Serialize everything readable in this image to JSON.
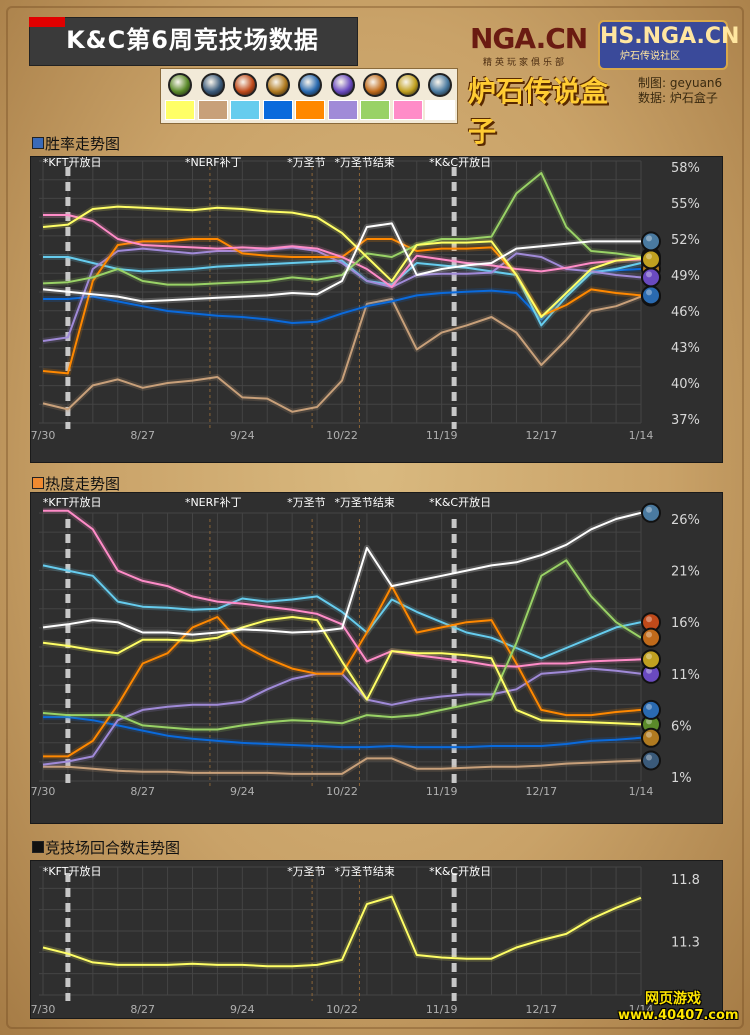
{
  "header": {
    "title": "K&C第6周竞技场数据",
    "nga_logo": "NGA.CN",
    "nga_sub": "精英玩家俱乐部",
    "hs_logo": "HS.NGA.CN",
    "hs_sub": "炉石传说社区",
    "box_logo": "炉石传说盒子",
    "credit_maker_label": "制图:",
    "credit_maker": "geyuan6",
    "credit_data_label": "数据:",
    "credit_data": "炉石盒子"
  },
  "legend": {
    "classes": [
      {
        "icon": "druid-icon",
        "color": "#ffff66",
        "icon_color": "#5a8a2a"
      },
      {
        "icon": "hunter-icon",
        "color": "#c8a07a",
        "icon_color": "#3a5a7a"
      },
      {
        "icon": "mage-icon",
        "color": "#66ccee",
        "icon_color": "#c04a1a"
      },
      {
        "icon": "paladin-icon",
        "color": "#0a6adc",
        "icon_color": "#b07a20"
      },
      {
        "icon": "priest-icon",
        "color": "#ff8800",
        "icon_color": "#2a6ab0"
      },
      {
        "icon": "rogue-icon",
        "color": "#a08ad8",
        "icon_color": "#6a4ac0"
      },
      {
        "icon": "shaman-icon",
        "color": "#99d266",
        "icon_color": "#c06a1a"
      },
      {
        "icon": "warlock-icon",
        "color": "#ff8cc8",
        "icon_color": "#c0a020"
      },
      {
        "icon": "warrior-icon",
        "color": "#ffffff",
        "icon_color": "#4a7aa0"
      }
    ]
  },
  "sections": {
    "winrate_title": "胜率走势图",
    "pop_title": "热度走势图",
    "turns_title": "竞技场回合数走势图"
  },
  "events": {
    "kft": "*KFT开放日",
    "nerf": "*NERF补丁",
    "halloween": "*万圣节",
    "halloween_end": "*万圣节结束",
    "kc": "*K&C开放日"
  },
  "footer": {
    "badge_top": "网页游戏",
    "badge_url": "www.40407.com"
  },
  "chart_data": [
    {
      "type": "line",
      "title": "胜率走势图",
      "x": [
        "7/30",
        "8/6",
        "8/13",
        "8/20",
        "8/27",
        "9/3",
        "9/10",
        "9/17",
        "9/24",
        "10/1",
        "10/8",
        "10/15",
        "10/22",
        "10/29",
        "11/5",
        "11/12",
        "11/19",
        "11/26",
        "12/3",
        "12/10",
        "12/17",
        "12/24",
        "12/31",
        "1/7",
        "1/14"
      ],
      "x_tick_labels": [
        "7/30",
        "8/27",
        "9/24",
        "10/22",
        "11/19",
        "12/17",
        "1/14"
      ],
      "yticks": [
        "58%",
        "55%",
        "52%",
        "49%",
        "46%",
        "43%",
        "40%",
        "37%"
      ],
      "ylim": [
        37,
        58
      ],
      "series": [
        {
          "color": "#ffff66",
          "values": [
            53,
            53.2,
            54.5,
            54.7,
            54.6,
            54.5,
            54.4,
            54.6,
            54.5,
            54.3,
            54.2,
            53.8,
            52.5,
            50.5,
            48.5,
            51.5,
            51.7,
            51.7,
            51.8,
            49,
            45.5,
            47.5,
            49.5,
            50.2,
            50.4
          ]
        },
        {
          "color": "#c8a07a",
          "values": [
            38.3,
            37.8,
            39.8,
            40.3,
            39.6,
            40,
            40.2,
            40.5,
            38.8,
            38.7,
            37.6,
            38,
            40.2,
            46.6,
            47,
            42.8,
            44.2,
            44.8,
            45.5,
            44.2,
            41.5,
            43.6,
            46,
            46.4,
            47.2
          ]
        },
        {
          "color": "#66ccee",
          "values": [
            50.5,
            50.5,
            50,
            49.5,
            49.3,
            49.4,
            49.5,
            49.7,
            49.8,
            49.9,
            50,
            50.1,
            50.2,
            48.5,
            48.2,
            50,
            49.8,
            49.6,
            49.3,
            49,
            44.8,
            47.2,
            49.2,
            49.5,
            50
          ]
        },
        {
          "color": "#0a6adc",
          "values": [
            47,
            47,
            47.2,
            46.8,
            46.4,
            46,
            45.8,
            45.6,
            45.5,
            45.3,
            45,
            45.1,
            45.8,
            46.4,
            46.8,
            47.3,
            47.5,
            47.6,
            47.7,
            47.5,
            45.3,
            47.5,
            49.3,
            49.4,
            49.5
          ]
        },
        {
          "color": "#ff8800",
          "values": [
            41,
            40.8,
            48.5,
            51.5,
            51.8,
            51.8,
            52,
            52,
            50.8,
            50.6,
            50.5,
            50.5,
            50.5,
            52,
            52,
            51,
            51.2,
            51.2,
            51.3,
            49,
            45.6,
            46.5,
            47.8,
            47.5,
            47.3
          ]
        },
        {
          "color": "#a08ad8",
          "values": [
            43.5,
            43.8,
            49.5,
            51,
            51.2,
            51,
            50.8,
            51,
            51,
            51.1,
            51.3,
            51,
            50,
            48.5,
            48,
            49,
            49.1,
            49.1,
            49.2,
            50.8,
            50.5,
            49.5,
            49.3,
            49,
            48.8
          ]
        },
        {
          "color": "#99d266",
          "values": [
            48.3,
            48.4,
            48.8,
            49.5,
            48.5,
            48.2,
            48.2,
            48.3,
            48.4,
            48.5,
            48.8,
            48.6,
            49,
            50.8,
            50.5,
            51.5,
            52,
            52,
            52.2,
            55.8,
            57.5,
            53,
            51,
            50.8,
            50.5
          ]
        },
        {
          "color": "#ff8cc8",
          "values": [
            54,
            54,
            53.5,
            52,
            51.5,
            51.4,
            51.3,
            51.2,
            51.3,
            51.2,
            51.4,
            51.2,
            50.5,
            49.5,
            48,
            50.6,
            50.3,
            50,
            49.8,
            49.5,
            49.3,
            49.6,
            50,
            50.2,
            50.3
          ]
        },
        {
          "color": "#ffffff",
          "values": [
            47.8,
            47.6,
            47.4,
            47.2,
            46.8,
            46.9,
            47,
            47.1,
            47.2,
            47.3,
            47.5,
            47.4,
            48.5,
            53,
            53.3,
            49,
            49.5,
            49.8,
            50,
            51.2,
            51.4,
            51.6,
            51.8,
            51.8,
            51.8
          ]
        }
      ]
    },
    {
      "type": "line",
      "title": "热度走势图",
      "x": [
        "7/30",
        "8/6",
        "8/13",
        "8/20",
        "8/27",
        "9/3",
        "9/10",
        "9/17",
        "9/24",
        "10/1",
        "10/8",
        "10/15",
        "10/22",
        "10/29",
        "11/5",
        "11/12",
        "11/19",
        "11/26",
        "12/3",
        "12/10",
        "12/17",
        "12/24",
        "12/31",
        "1/7",
        "1/14"
      ],
      "x_tick_labels": [
        "7/30",
        "8/27",
        "9/24",
        "10/22",
        "11/19",
        "12/17",
        "1/14"
      ],
      "yticks": [
        "26%",
        "21%",
        "16%",
        "11%",
        "6%",
        "1%"
      ],
      "ylim": [
        1,
        26
      ],
      "series": [
        {
          "color": "#ffff66",
          "values": [
            14,
            13.7,
            13.3,
            13,
            14.3,
            14.3,
            14.2,
            14.5,
            15.5,
            16.2,
            16.5,
            16.2,
            12.2,
            8.5,
            13.2,
            13,
            13,
            12.8,
            12.5,
            7.5,
            6.5,
            6.4,
            6.3,
            6.2,
            6.1
          ]
        },
        {
          "color": "#c8a07a",
          "values": [
            2,
            2,
            1.8,
            1.6,
            1.5,
            1.5,
            1.4,
            1.4,
            1.4,
            1.4,
            1.3,
            1.3,
            1.3,
            2.8,
            2.8,
            1.8,
            1.8,
            1.9,
            2,
            2,
            2.1,
            2.3,
            2.4,
            2.5,
            2.6
          ]
        },
        {
          "color": "#66ccee",
          "values": [
            21.5,
            21,
            20.5,
            18,
            17.5,
            17.4,
            17.2,
            17.3,
            18.3,
            18,
            18.2,
            18.5,
            17,
            15,
            18.2,
            17,
            16,
            15,
            14.5,
            13.5,
            12.5,
            13.5,
            14.5,
            15.5,
            16
          ]
        },
        {
          "color": "#0a6adc",
          "values": [
            6.8,
            6.8,
            6.5,
            6,
            5.5,
            5,
            4.7,
            4.5,
            4.3,
            4.2,
            4.1,
            4,
            3.9,
            3.9,
            4,
            3.9,
            3.9,
            3.9,
            4,
            4,
            4,
            4.2,
            4.5,
            4.6,
            4.8
          ]
        },
        {
          "color": "#ff8800",
          "values": [
            3,
            3,
            4.5,
            8,
            12,
            13,
            15.5,
            16.5,
            13.8,
            12.5,
            11.5,
            11,
            11,
            15,
            19.5,
            15,
            15.5,
            16,
            16.2,
            12,
            7.5,
            7,
            7,
            7.3,
            7.5
          ]
        },
        {
          "color": "#a08ad8",
          "values": [
            2.2,
            2.5,
            3,
            6.5,
            7.5,
            7.8,
            8,
            8,
            8.3,
            9.5,
            10.5,
            11,
            11,
            8.5,
            8,
            8.5,
            8.8,
            9,
            9,
            9.5,
            11,
            11.2,
            11.5,
            11.3,
            11
          ]
        },
        {
          "color": "#99d266",
          "values": [
            7.2,
            7,
            7,
            7,
            6,
            5.8,
            5.6,
            5.6,
            6,
            6.3,
            6.5,
            6.4,
            6.2,
            7,
            6.8,
            7,
            7.5,
            8,
            8.5,
            14,
            20.5,
            22,
            18.5,
            16,
            14.5
          ]
        },
        {
          "color": "#ff8cc8",
          "values": [
            26.8,
            26.8,
            25,
            21,
            20,
            19.5,
            18.5,
            18,
            17.8,
            17.5,
            17.2,
            16.8,
            15.8,
            12.2,
            13.2,
            12.8,
            12.5,
            12.2,
            11.8,
            11.7,
            12,
            12,
            12.2,
            12.3,
            12.4
          ]
        },
        {
          "color": "#ffffff",
          "values": [
            15.5,
            15.8,
            16.2,
            16,
            15,
            15,
            14.8,
            15,
            15.3,
            15.2,
            15,
            15.1,
            15.4,
            23.2,
            19.5,
            20,
            20.5,
            21,
            21.5,
            21.8,
            22.5,
            23.5,
            25,
            26,
            26.6
          ]
        }
      ]
    },
    {
      "type": "line",
      "title": "竞技场回合数走势图",
      "x": [
        "7/30",
        "8/6",
        "8/13",
        "8/20",
        "8/27",
        "9/3",
        "9/10",
        "9/17",
        "9/24",
        "10/1",
        "10/8",
        "10/15",
        "10/22",
        "10/29",
        "11/5",
        "11/12",
        "11/19",
        "11/26",
        "12/3",
        "12/10",
        "12/17",
        "12/24",
        "12/31",
        "1/7",
        "1/14"
      ],
      "x_tick_labels": [
        "7/30",
        "8/27",
        "9/24",
        "10/22",
        "11/19",
        "12/17",
        "1/14"
      ],
      "yticks": [
        "11.8",
        "11.3"
      ],
      "ylim": [
        10.9,
        11.85
      ],
      "series": [
        {
          "color": "#ffff66",
          "values": [
            11.25,
            11.2,
            11.13,
            11.11,
            11.11,
            11.11,
            11.12,
            11.11,
            11.11,
            11.1,
            11.1,
            11.11,
            11.15,
            11.6,
            11.66,
            11.19,
            11.17,
            11.16,
            11.16,
            11.25,
            11.31,
            11.36,
            11.48,
            11.57,
            11.65
          ]
        }
      ]
    }
  ]
}
